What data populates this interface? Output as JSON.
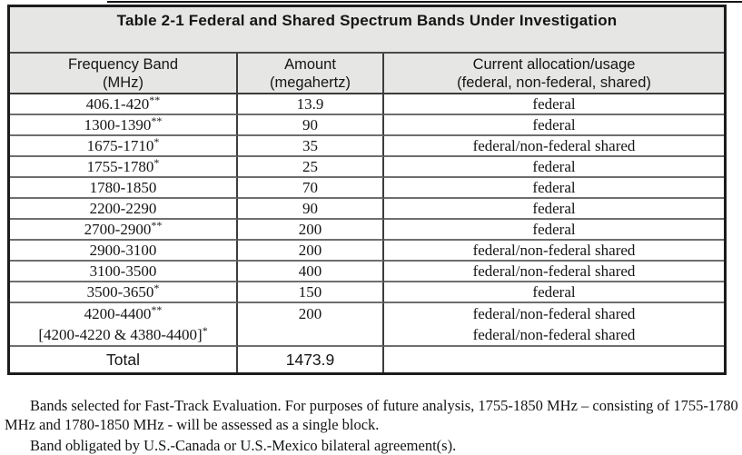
{
  "table": {
    "title": "Table 2-1 Federal and Shared Spectrum Bands Under Investigation",
    "columns": [
      {
        "line1": "Frequency Band",
        "line2": "(MHz)"
      },
      {
        "line1": "Amount",
        "line2": "(megahertz)"
      },
      {
        "line1": "Current allocation/usage",
        "line2": "(federal, non-federal, shared)"
      }
    ],
    "rows": [
      {
        "band": "406.1-420",
        "band_note": "**",
        "amount": "13.9",
        "allocation": "federal"
      },
      {
        "band": "1300-1390",
        "band_note": "**",
        "amount": "90",
        "allocation": "federal"
      },
      {
        "band": "1675-1710",
        "band_note": "*",
        "amount": "35",
        "allocation": "federal/non-federal shared"
      },
      {
        "band": "1755-1780",
        "band_note": "*",
        "amount": "25",
        "allocation": "federal"
      },
      {
        "band": "1780-1850",
        "band_note": "",
        "amount": "70",
        "allocation": "federal"
      },
      {
        "band": "2200-2290",
        "band_note": "",
        "amount": "90",
        "allocation": "federal"
      },
      {
        "band": "2700-2900",
        "band_note": "**",
        "amount": "200",
        "allocation": "federal"
      },
      {
        "band": "2900-3100",
        "band_note": "",
        "amount": "200",
        "allocation": "federal/non-federal shared"
      },
      {
        "band": "3100-3500",
        "band_note": "",
        "amount": "400",
        "allocation": "federal/non-federal shared"
      },
      {
        "band": "3500-3650",
        "band_note": "*",
        "amount": "150",
        "allocation": "federal"
      },
      {
        "band": "4200-4400",
        "band_note": "**",
        "band_line2": "[4200-4220 & 4380-4400]",
        "band_line2_note": "*",
        "amount": "200",
        "allocation": "federal/non-federal shared",
        "allocation_line2": "federal/non-federal shared"
      }
    ],
    "total": {
      "label": "Total",
      "amount": "1473.9"
    }
  },
  "footnotes": [
    "Bands selected for Fast-Track Evaluation.  For purposes of future analysis, 1755-1850 MHz – consisting of 1755-1780 MHz and 1780-1850 MHz - will be assessed as a single block.",
    "Band obligated by U.S.-Canada or U.S.-Mexico bilateral agreement(s)."
  ],
  "colors": {
    "header_background": "#e6e6e5",
    "outer_border": "#1c1c1c",
    "row_line": "#6e6e6e",
    "column_line": "#3d3d3d"
  }
}
